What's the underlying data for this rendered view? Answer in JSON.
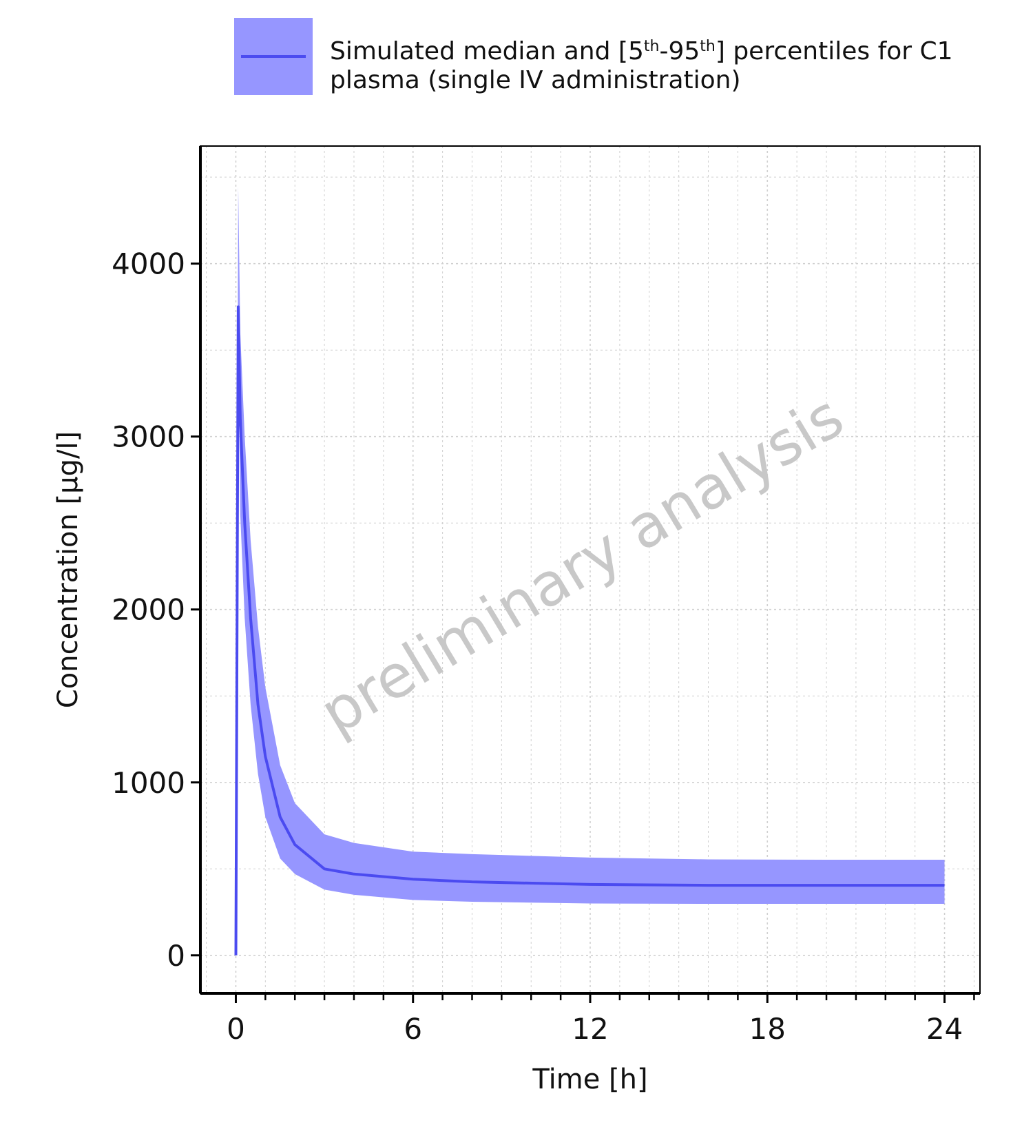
{
  "chart_data": {
    "type": "area",
    "legend": {
      "line1_prefix": "Simulated median and [5",
      "sup1": "th",
      "dash": "-95",
      "sup2": "th",
      "line1_suffix": "] percentiles for C1",
      "line2": "plasma (single IV administration)",
      "placement": "top"
    },
    "xlabel": "Time [h]",
    "ylabel": "Concentration [µg/l]",
    "watermark": "preliminary analysis",
    "xlim": [
      -1.2,
      25.2
    ],
    "ylim": [
      -220,
      4680
    ],
    "x_ticks": [
      0,
      6,
      12,
      18,
      24
    ],
    "x_minor_step": 1,
    "y_ticks": [
      0,
      1000,
      2000,
      3000,
      4000
    ],
    "y_minor_step": 500,
    "grid": true,
    "colors": {
      "band": "#9696ff",
      "median": "#4b4bf0",
      "grid": "#d0d0d0",
      "axis": "#000000"
    },
    "series": [
      {
        "name": "Simulated median and [5th-95th] percentiles for C1 plasma (single IV administration)",
        "x": [
          0,
          0.08,
          0.15,
          0.3,
          0.5,
          0.75,
          1,
          1.5,
          2,
          3,
          4,
          6,
          8,
          12,
          16,
          20,
          24
        ],
        "median": [
          0,
          3750,
          3100,
          2500,
          1950,
          1450,
          1150,
          800,
          640,
          500,
          470,
          440,
          425,
          410,
          405,
          405,
          405
        ],
        "p5": [
          0,
          3700,
          2550,
          1950,
          1450,
          1050,
          800,
          560,
          470,
          380,
          350,
          320,
          310,
          300,
          298,
          298,
          298
        ],
        "p95": [
          0,
          4450,
          3600,
          3000,
          2400,
          1900,
          1550,
          1100,
          880,
          700,
          650,
          600,
          585,
          565,
          555,
          553,
          553
        ]
      }
    ]
  }
}
